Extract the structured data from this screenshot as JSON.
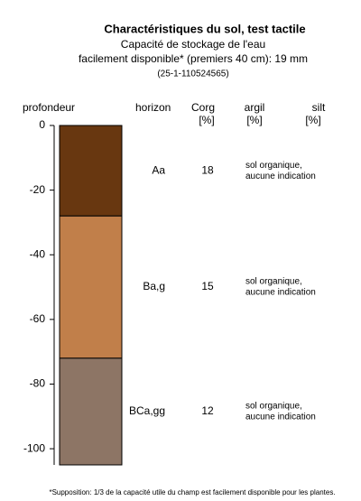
{
  "chart_data": {
    "type": "soil-profile",
    "title": "Charactéristiques du sol, test tactile",
    "subtitle": [
      "Capacité de stockage de l'eau",
      "facilement disponible* (premiers 40 cm): 19 mm"
    ],
    "id": "(25-1-110524565)",
    "y_label": "profondeur",
    "columns": [
      {
        "name": "horizon"
      },
      {
        "name": "Corg",
        "unit": "[%]"
      },
      {
        "name": "argil",
        "unit": "[%]"
      },
      {
        "name": "silt",
        "unit": "[%]"
      }
    ],
    "ylim": [
      -105,
      0
    ],
    "yticks": [
      0,
      -20,
      -40,
      -60,
      -80,
      -100
    ],
    "horizons": [
      {
        "name": "Aa",
        "top": 0,
        "bottom": -28,
        "color": "#683710",
        "corg": 18,
        "argil": [
          "sol organique,",
          "aucune indication"
        ]
      },
      {
        "name": "Ba,g",
        "top": -28,
        "bottom": -72,
        "color": "#c17f4a",
        "corg": 15,
        "argil": [
          "sol organique,",
          "aucune indication"
        ]
      },
      {
        "name": "BCa,gg",
        "top": -72,
        "bottom": -105,
        "color": "#8d7565",
        "corg": 12,
        "argil": [
          "sol organique,",
          "aucune indication"
        ]
      }
    ],
    "footnote": "*Supposition: 1/3 de la capacité utile du champ est facilement disponible pour les plantes."
  }
}
